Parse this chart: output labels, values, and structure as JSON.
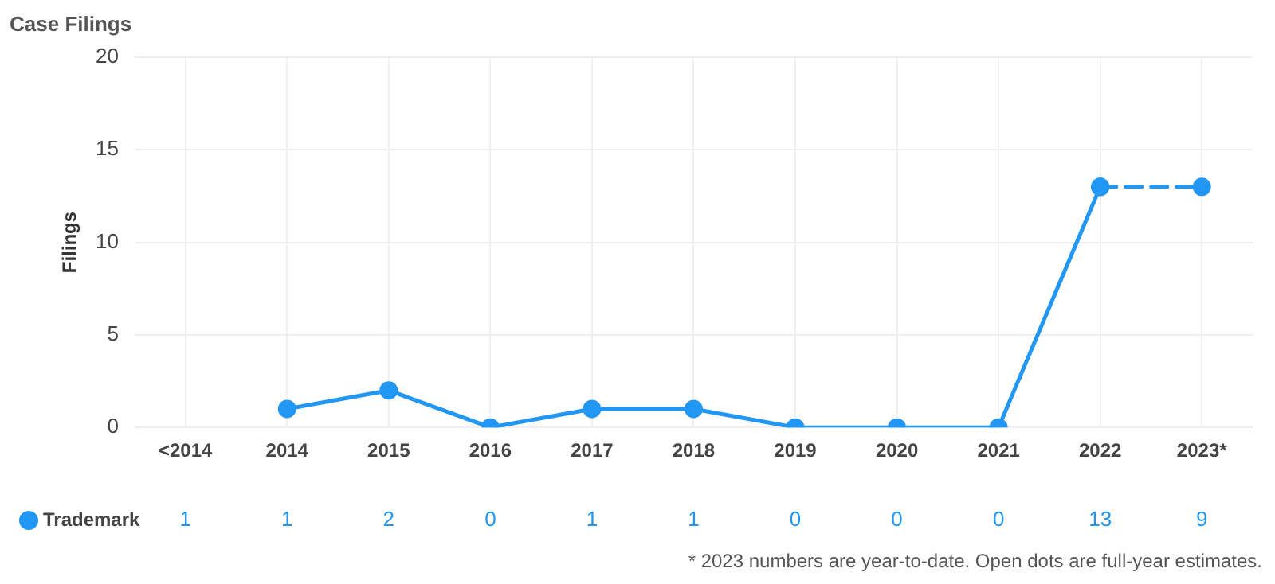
{
  "chart_data": {
    "type": "line",
    "title": "Case Filings",
    "ylabel": "Filings",
    "categories": [
      "<2014",
      "2014",
      "2015",
      "2016",
      "2017",
      "2018",
      "2019",
      "2020",
      "2021",
      "2022",
      "2023*"
    ],
    "series": [
      {
        "name": "Trademark",
        "color": "#2196f3",
        "values": [
          null,
          1,
          2,
          0,
          1,
          1,
          0,
          0,
          0,
          13,
          null
        ],
        "value_labels": [
          "1",
          "1",
          "2",
          "0",
          "1",
          "1",
          "0",
          "0",
          "0",
          "13",
          "9"
        ]
      },
      {
        "color": "#2196f3",
        "line_style": "dashed",
        "values": [
          null,
          null,
          null,
          null,
          null,
          null,
          null,
          null,
          null,
          13,
          13
        ]
      }
    ],
    "ylim": [
      0,
      20
    ],
    "yticks": [
      0,
      5,
      10,
      15,
      20
    ],
    "grid": true,
    "legend": "bottom left",
    "marker": "circle",
    "line_style": "solid",
    "annotations": [
      "* 2023 numbers are year-to-date. Open dots are full-year estimates."
    ]
  }
}
